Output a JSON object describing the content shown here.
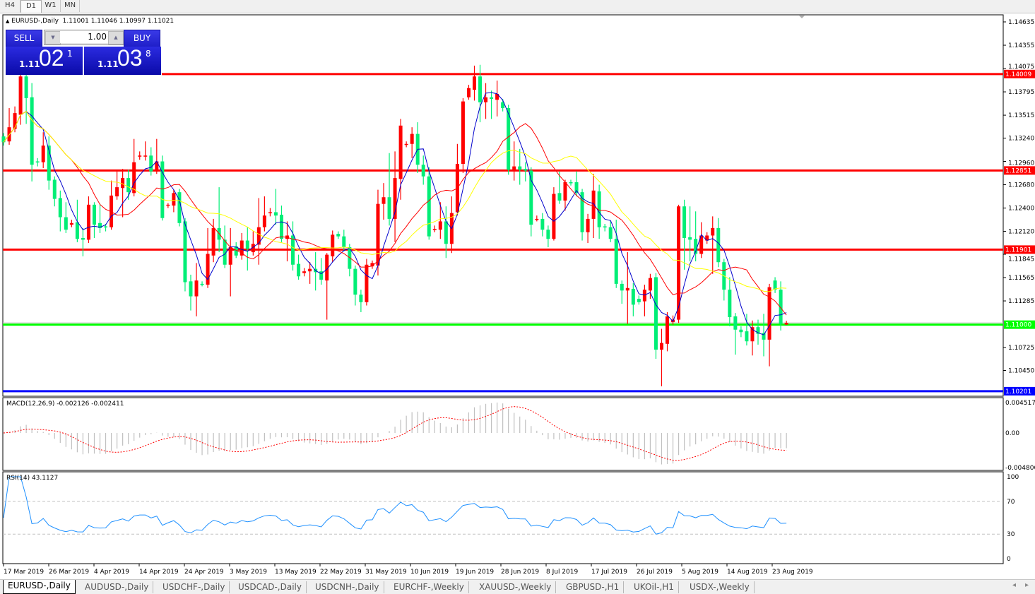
{
  "timeframes": [
    {
      "label": "H4"
    },
    {
      "label": "D1",
      "selected": true
    },
    {
      "label": "W1"
    },
    {
      "label": "MN"
    }
  ],
  "chart": {
    "symbol_label": "EURUSD-,Daily",
    "ohlc_label": "1.11001 1.11046 1.10997 1.11021",
    "collapse_icon": "triangle-up-icon"
  },
  "trade_panel": {
    "sell_label": "SELL",
    "buy_label": "BUY",
    "lot": "1.00",
    "sell_price": {
      "prefix": "1.11",
      "big": "02",
      "sup": "1"
    },
    "buy_price": {
      "prefix": "1.11",
      "big": "03",
      "sup": "8"
    }
  },
  "colors": {
    "bull": "#ff0000",
    "bear": "#00ee76",
    "ma_fast": "#0000cc",
    "ma_mid": "#ff0000",
    "ma_slow": "#ffff00",
    "macd_hist": "#c0c0c0",
    "macd_signal": "#ff0000",
    "rsi": "#1e90ff"
  },
  "chart_data": {
    "type": "candlestick",
    "price_axis_ticks": [
      "1.14635",
      "1.14355",
      "1.14075",
      "1.13795",
      "1.13515",
      "1.13240",
      "1.12960",
      "1.12680",
      "1.12400",
      "1.12120",
      "1.11845",
      "1.11565",
      "1.11285",
      "1.10725",
      "1.10450"
    ],
    "ylim": [
      1.1017,
      1.14635
    ],
    "date_labels": [
      "17 Mar 2019",
      "26 Mar 2019",
      "4 Apr 2019",
      "14 Apr 2019",
      "24 Apr 2019",
      "3 May 2019",
      "13 May 2019",
      "22 May 2019",
      "31 May 2019",
      "10 Jun 2019",
      "19 Jun 2019",
      "28 Jun 2019",
      "8 Jul 2019",
      "17 Jul 2019",
      "26 Jul 2019",
      "5 Aug 2019",
      "14 Aug 2019",
      "23 Aug 2019"
    ],
    "horizontal_lines": [
      {
        "price": "1.14009",
        "color": "#ff0000"
      },
      {
        "price": "1.12851",
        "color": "#ff0000"
      },
      {
        "price": "1.11901",
        "color": "#ff0000"
      },
      {
        "price": "1.11000",
        "color": "#00ff00"
      },
      {
        "price": "1.10201",
        "color": "#0000ff"
      }
    ],
    "bid_line": 1.11021,
    "ohlc": [
      [
        1.1326,
        1.133,
        1.1315,
        1.1319
      ],
      [
        1.132,
        1.136,
        1.1316,
        1.1337
      ],
      [
        1.1335,
        1.1362,
        1.1331,
        1.1354
      ],
      [
        1.1352,
        1.1409,
        1.134,
        1.1398
      ],
      [
        1.1398,
        1.1405,
        1.1341,
        1.1372
      ],
      [
        1.1373,
        1.139,
        1.1272,
        1.1292
      ],
      [
        1.1296,
        1.13,
        1.129,
        1.1295
      ],
      [
        1.1295,
        1.1331,
        1.1288,
        1.1315
      ],
      [
        1.1315,
        1.1326,
        1.1262,
        1.1273
      ],
      [
        1.1274,
        1.1278,
        1.1242,
        1.1251
      ],
      [
        1.1252,
        1.1261,
        1.1212,
        1.1229
      ],
      [
        1.1229,
        1.1247,
        1.121,
        1.1214
      ],
      [
        1.122,
        1.1226,
        1.1217,
        1.1222
      ],
      [
        1.1223,
        1.125,
        1.1199,
        1.1203
      ],
      [
        1.1204,
        1.1216,
        1.1182,
        1.1202
      ],
      [
        1.1202,
        1.1254,
        1.1198,
        1.1244
      ],
      [
        1.1244,
        1.1247,
        1.1204,
        1.122
      ],
      [
        1.1222,
        1.1245,
        1.121,
        1.1216
      ],
      [
        1.1218,
        1.1221,
        1.1212,
        1.1217
      ],
      [
        1.1217,
        1.1273,
        1.1214,
        1.1255
      ],
      [
        1.1254,
        1.1284,
        1.125,
        1.1265
      ],
      [
        1.1264,
        1.1287,
        1.1229,
        1.1276
      ],
      [
        1.1276,
        1.1286,
        1.125,
        1.1259
      ],
      [
        1.1258,
        1.1323,
        1.1254,
        1.1295
      ],
      [
        1.1302,
        1.1308,
        1.1298,
        1.1303
      ],
      [
        1.1302,
        1.132,
        1.1297,
        1.1303
      ],
      [
        1.1303,
        1.1313,
        1.1279,
        1.1284
      ],
      [
        1.1284,
        1.1323,
        1.1281,
        1.1296
      ],
      [
        1.1296,
        1.1303,
        1.1225,
        1.1228
      ],
      [
        1.1243,
        1.1246,
        1.124,
        1.1244
      ],
      [
        1.1243,
        1.1262,
        1.1235,
        1.1258
      ],
      [
        1.1259,
        1.1263,
        1.1218,
        1.1222
      ],
      [
        1.1224,
        1.1228,
        1.114,
        1.1151
      ],
      [
        1.1152,
        1.116,
        1.1117,
        1.1134
      ],
      [
        1.1134,
        1.1174,
        1.111,
        1.1153
      ],
      [
        1.1149,
        1.1152,
        1.1146,
        1.1148
      ],
      [
        1.1148,
        1.1216,
        1.1144,
        1.1185
      ],
      [
        1.1183,
        1.1227,
        1.1175,
        1.1216
      ],
      [
        1.1216,
        1.1265,
        1.1187,
        1.1202
      ],
      [
        1.1202,
        1.1219,
        1.1168,
        1.1172
      ],
      [
        1.1172,
        1.1216,
        1.1134,
        1.1193
      ],
      [
        1.1194,
        1.1199,
        1.118,
        1.1183
      ],
      [
        1.1183,
        1.121,
        1.1178,
        1.1201
      ],
      [
        1.1201,
        1.1217,
        1.1165,
        1.1191
      ],
      [
        1.1187,
        1.1212,
        1.1183,
        1.1197
      ],
      [
        1.1196,
        1.1252,
        1.1172,
        1.1217
      ],
      [
        1.1217,
        1.1254,
        1.1212,
        1.1231
      ],
      [
        1.1234,
        1.124,
        1.123,
        1.1235
      ],
      [
        1.1235,
        1.1263,
        1.122,
        1.1231
      ],
      [
        1.1232,
        1.1243,
        1.1199,
        1.1203
      ],
      [
        1.1203,
        1.1224,
        1.1176,
        1.1207
      ],
      [
        1.1207,
        1.1224,
        1.1165,
        1.1172
      ],
      [
        1.1173,
        1.1184,
        1.1154,
        1.1158
      ],
      [
        1.1162,
        1.1168,
        1.1158,
        1.1164
      ],
      [
        1.1164,
        1.1175,
        1.1149,
        1.1167
      ],
      [
        1.1167,
        1.1187,
        1.1141,
        1.1163
      ],
      [
        1.1164,
        1.118,
        1.1148,
        1.1154
      ],
      [
        1.1153,
        1.1186,
        1.1106,
        1.1184
      ],
      [
        1.1182,
        1.1213,
        1.1175,
        1.1208
      ],
      [
        1.1209,
        1.1212,
        1.1203,
        1.1206
      ],
      [
        1.1206,
        1.1214,
        1.1188,
        1.1193
      ],
      [
        1.1193,
        1.1197,
        1.1158,
        1.1167
      ],
      [
        1.1167,
        1.1171,
        1.1123,
        1.1136
      ],
      [
        1.1136,
        1.1142,
        1.1115,
        1.1127
      ],
      [
        1.1127,
        1.1179,
        1.1123,
        1.1172
      ],
      [
        1.117,
        1.1177,
        1.1167,
        1.1174
      ],
      [
        1.1171,
        1.1262,
        1.1159,
        1.1245
      ],
      [
        1.1245,
        1.127,
        1.1226,
        1.1253
      ],
      [
        1.1253,
        1.1306,
        1.1219,
        1.1227
      ],
      [
        1.1227,
        1.1308,
        1.1199,
        1.1276
      ],
      [
        1.1275,
        1.1347,
        1.125,
        1.1339
      ],
      [
        1.1316,
        1.132,
        1.1313,
        1.1317
      ],
      [
        1.1317,
        1.1337,
        1.13,
        1.1329
      ],
      [
        1.1329,
        1.1343,
        1.1282,
        1.1292
      ],
      [
        1.1292,
        1.1303,
        1.1268,
        1.1278
      ],
      [
        1.1278,
        1.1289,
        1.1202,
        1.1206
      ],
      [
        1.1214,
        1.1219,
        1.1211,
        1.1215
      ],
      [
        1.1214,
        1.1247,
        1.1203,
        1.1224
      ],
      [
        1.1224,
        1.1242,
        1.118,
        1.1197
      ],
      [
        1.1197,
        1.1254,
        1.1186,
        1.1234
      ],
      [
        1.1235,
        1.1317,
        1.1231,
        1.1293
      ],
      [
        1.1293,
        1.1372,
        1.1282,
        1.1368
      ],
      [
        1.1373,
        1.1388,
        1.137,
        1.1384
      ],
      [
        1.1382,
        1.1411,
        1.1369,
        1.1398
      ],
      [
        1.1398,
        1.1412,
        1.1343,
        1.1367
      ],
      [
        1.1367,
        1.139,
        1.1347,
        1.1373
      ],
      [
        1.1373,
        1.1381,
        1.1347,
        1.1371
      ],
      [
        1.137,
        1.1393,
        1.135,
        1.1377
      ],
      [
        1.1367,
        1.1371,
        1.1356,
        1.136
      ],
      [
        1.136,
        1.1364,
        1.128,
        1.1286
      ],
      [
        1.1286,
        1.132,
        1.1273,
        1.129
      ],
      [
        1.129,
        1.1311,
        1.1268,
        1.1286
      ],
      [
        1.1287,
        1.1295,
        1.1272,
        1.1285
      ],
      [
        1.1285,
        1.1289,
        1.1206,
        1.122
      ],
      [
        1.1227,
        1.1231,
        1.1224,
        1.1227
      ],
      [
        1.1227,
        1.1234,
        1.1206,
        1.1214
      ],
      [
        1.1214,
        1.1219,
        1.1193,
        1.1203
      ],
      [
        1.1203,
        1.1265,
        1.1201,
        1.1257
      ],
      [
        1.1258,
        1.1284,
        1.1245,
        1.1249
      ],
      [
        1.1249,
        1.1274,
        1.1237,
        1.1271
      ],
      [
        1.1271,
        1.1274,
        1.1267,
        1.127
      ],
      [
        1.1271,
        1.1284,
        1.1254,
        1.1258
      ],
      [
        1.1259,
        1.1263,
        1.1201,
        1.1211
      ],
      [
        1.1211,
        1.1233,
        1.1198,
        1.1227
      ],
      [
        1.1227,
        1.1281,
        1.1204,
        1.1261
      ],
      [
        1.126,
        1.1268,
        1.1203,
        1.1217
      ],
      [
        1.1218,
        1.1221,
        1.1212,
        1.1217
      ],
      [
        1.1217,
        1.1225,
        1.1199,
        1.1203
      ],
      [
        1.1203,
        1.1226,
        1.1144,
        1.1149
      ],
      [
        1.1149,
        1.1153,
        1.1125,
        1.1141
      ],
      [
        1.1141,
        1.1187,
        1.1101,
        1.1144
      ],
      [
        1.1143,
        1.115,
        1.111,
        1.1124
      ],
      [
        1.1131,
        1.1135,
        1.1124,
        1.1127
      ],
      [
        1.1128,
        1.1148,
        1.111,
        1.1142
      ],
      [
        1.1141,
        1.1161,
        1.1131,
        1.1156
      ],
      [
        1.1157,
        1.1162,
        1.1059,
        1.107
      ],
      [
        1.107,
        1.1095,
        1.1026,
        1.1078
      ],
      [
        1.1077,
        1.1115,
        1.1068,
        1.111
      ],
      [
        1.1103,
        1.1111,
        1.11,
        1.1106
      ],
      [
        1.1106,
        1.1244,
        1.1102,
        1.1242
      ],
      [
        1.1242,
        1.125,
        1.1166,
        1.1204
      ],
      [
        1.1205,
        1.1242,
        1.1176,
        1.1202
      ],
      [
        1.1203,
        1.1236,
        1.1176,
        1.1185
      ],
      [
        1.1185,
        1.1223,
        1.118,
        1.1207
      ],
      [
        1.1201,
        1.1211,
        1.1197,
        1.1207
      ],
      [
        1.1207,
        1.123,
        1.1161,
        1.1216
      ],
      [
        1.1216,
        1.1228,
        1.1169,
        1.1175
      ],
      [
        1.1175,
        1.1179,
        1.1129,
        1.1142
      ],
      [
        1.1142,
        1.1157,
        1.1098,
        1.1109
      ],
      [
        1.111,
        1.1114,
        1.1064,
        1.1094
      ],
      [
        1.1094,
        1.1098,
        1.1085,
        1.1091
      ],
      [
        1.1092,
        1.1113,
        1.1075,
        1.108
      ],
      [
        1.108,
        1.1105,
        1.1063,
        1.1097
      ],
      [
        1.1097,
        1.1106,
        1.1076,
        1.1089
      ],
      [
        1.109,
        1.1113,
        1.1062,
        1.1082
      ],
      [
        1.1082,
        1.1149,
        1.105,
        1.1145
      ],
      [
        1.1153,
        1.1157,
        1.1138,
        1.1142
      ],
      [
        1.1142,
        1.1152,
        1.1093,
        1.1101
      ],
      [
        1.11001,
        1.11046,
        1.10997,
        1.11021
      ]
    ]
  },
  "macd": {
    "label": "MACD(12,26,9) -0.002126 -0.002411",
    "axis": [
      "0.004517",
      "0.00",
      "-0.004806"
    ],
    "ylim": [
      -0.004806,
      0.004517
    ]
  },
  "rsi": {
    "label": "RSI(14) 43.1127",
    "axis": [
      "100",
      "70",
      "30",
      "0"
    ],
    "levels": [
      70,
      30
    ]
  },
  "symbol_tabs": [
    {
      "label": "EURUSD-,Daily",
      "active": true
    },
    {
      "label": "AUDUSD-,Daily"
    },
    {
      "label": "USDCHF-,Daily"
    },
    {
      "label": "USDCAD-,Daily"
    },
    {
      "label": "USDCNH-,Daily"
    },
    {
      "label": "EURCHF-,Weekly"
    },
    {
      "label": "XAUUSD-,Weekly"
    },
    {
      "label": "GBPUSD-,H1"
    },
    {
      "label": "UKOil-,H1"
    },
    {
      "label": "USDX-,Weekly"
    }
  ],
  "tab_scroll": {
    "left": "◂",
    "right": "▸"
  }
}
